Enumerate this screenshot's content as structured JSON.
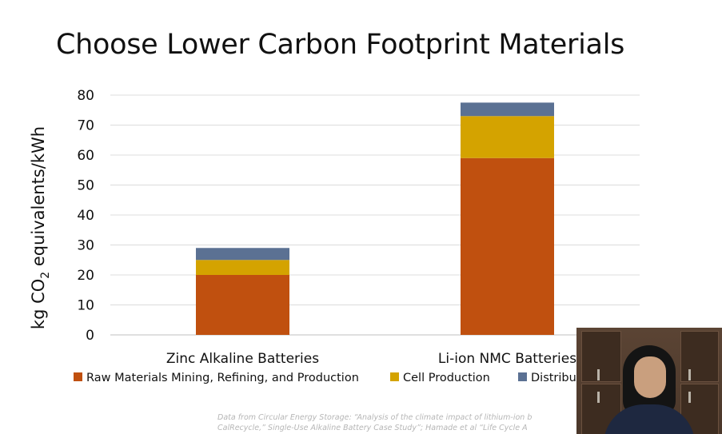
{
  "slide": {
    "title": "Choose Lower Carbon Footprint Materials",
    "source_note_line1": "Data from Circular Energy Storage: “Analysis of the climate impact of lithium-ion b",
    "source_note_line2": "CalRecycle,” Single-Use Alkaline Battery Case Study”; Hamade et al “Life Cycle A"
  },
  "chart_data": {
    "type": "bar",
    "stacked": true,
    "categories": [
      "Zinc Alkaline Batteries",
      "Li-ion NMC Batteries"
    ],
    "series": [
      {
        "name": "Raw Materials Mining,  Refining, and Production",
        "color": "#c0500f",
        "values": [
          20,
          59
        ]
      },
      {
        "name": "Cell Production",
        "color": "#d4a300",
        "values": [
          5,
          14
        ]
      },
      {
        "name": "Distribut",
        "color": "#5b7193",
        "values": [
          4,
          4.5
        ]
      }
    ],
    "ylabel": "kg CO2 equivalents/kWh",
    "ylim": [
      0,
      80
    ],
    "yticks": [
      "0",
      "10",
      "20",
      "30",
      "40",
      "50",
      "60",
      "70",
      "80"
    ],
    "grid": true,
    "legend_position": "bottom"
  },
  "webcam": {
    "label": "presenter video"
  }
}
